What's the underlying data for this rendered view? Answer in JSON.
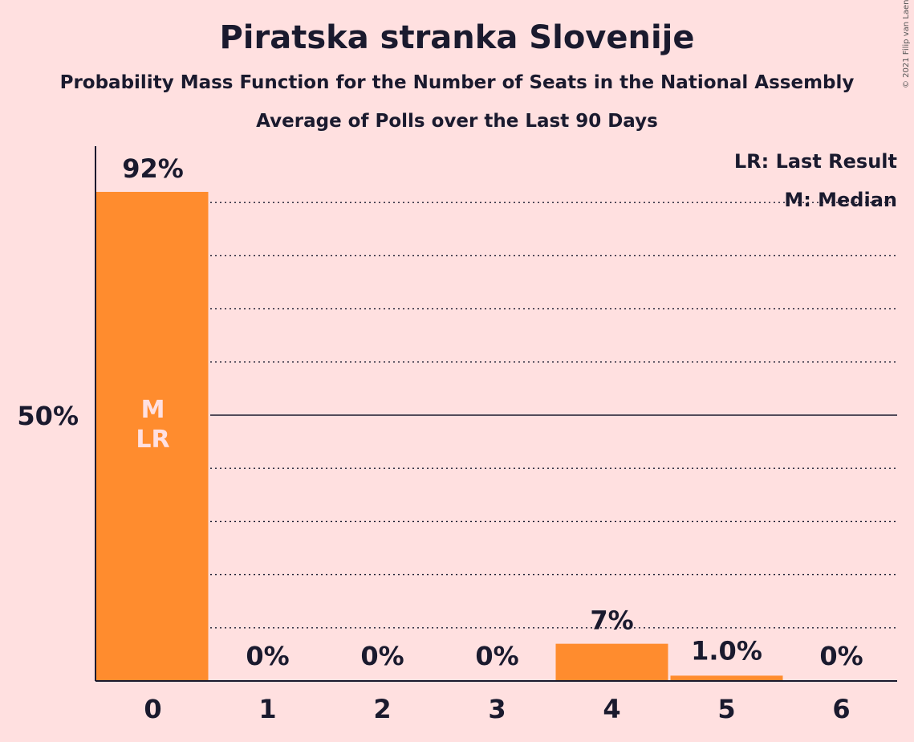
{
  "title": "Piratska stranka Slovenije",
  "subtitle": "Probability Mass Function for the Number of Seats in the National Assembly",
  "subtitle2": "Average of Polls over the Last 90 Days",
  "copyright": "© 2021 Filip van Laenen",
  "legend": {
    "last_result": "LR: Last Result",
    "median": "M: Median"
  },
  "colors": {
    "background": "#FFE0E0",
    "bar": "#FF8C2E",
    "text": "#1a1a2e",
    "marker_text": "#FFE0E0"
  },
  "chart_data": {
    "type": "bar",
    "categories": [
      "0",
      "1",
      "2",
      "3",
      "4",
      "5",
      "6"
    ],
    "values": [
      92,
      0,
      0,
      0,
      7,
      1.0,
      0
    ],
    "value_labels": [
      "92%",
      "0%",
      "0%",
      "0%",
      "7%",
      "1.0%",
      "0%"
    ],
    "ylim": [
      0,
      100
    ],
    "y_ticks": [
      {
        "value": 50,
        "label": "50%"
      }
    ],
    "gridlines": [
      10,
      20,
      30,
      40,
      50,
      60,
      70,
      80,
      90
    ],
    "solid_gridline": 50,
    "markers": [
      {
        "category": "0",
        "labels": [
          "M",
          "LR"
        ]
      }
    ],
    "legend_position": "top-right"
  }
}
